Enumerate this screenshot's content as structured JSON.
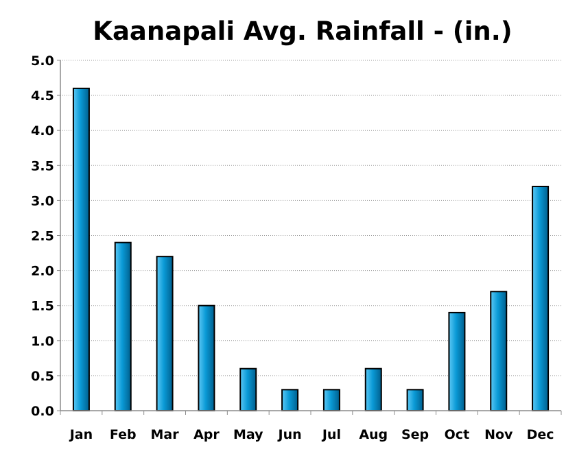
{
  "chart_data": {
    "type": "bar",
    "title": "Kaanapali Avg. Rainfall - (in.)",
    "xlabel": "",
    "ylabel": "",
    "categories": [
      "Jan",
      "Feb",
      "Mar",
      "Apr",
      "May",
      "Jun",
      "Jul",
      "Aug",
      "Sep",
      "Oct",
      "Nov",
      "Dec"
    ],
    "values": [
      4.6,
      2.4,
      2.2,
      1.5,
      0.6,
      0.3,
      0.3,
      0.6,
      0.3,
      1.4,
      1.7,
      3.2
    ],
    "ylim": [
      0,
      5
    ],
    "yticks": [
      "0.0",
      "0.5",
      "1.0",
      "1.5",
      "2.0",
      "2.5",
      "3.0",
      "3.5",
      "4.0",
      "4.5",
      "5.0"
    ],
    "grid": "horizontal dotted",
    "legend": "none",
    "colors": {
      "bar_light": "#5cc8f5",
      "bar_mid": "#0a9ad6",
      "bar_dark": "#005f8e",
      "bar_outline": "#000000",
      "grid": "#9a9a9a",
      "axis": "#8c8c8c"
    }
  }
}
